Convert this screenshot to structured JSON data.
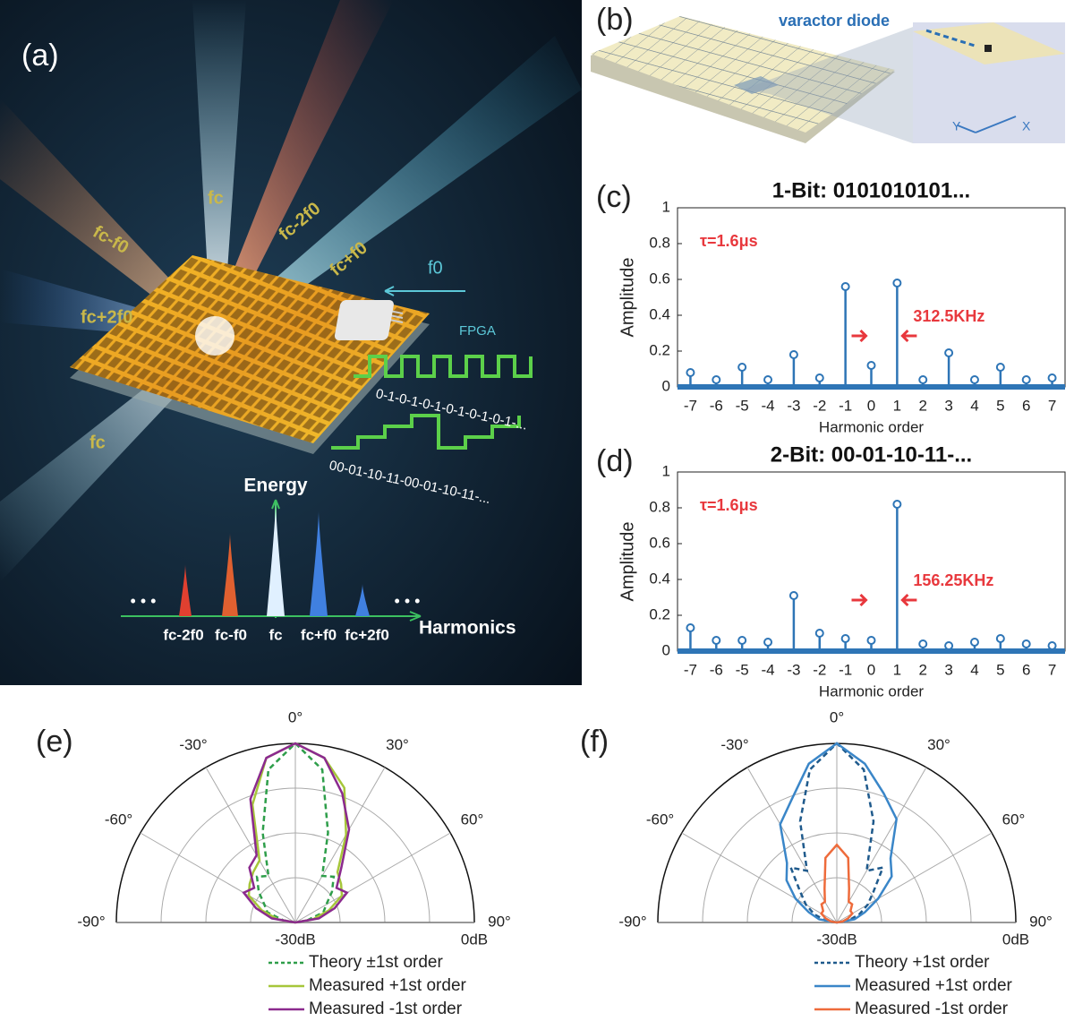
{
  "illustration_a": {
    "label": "(a)",
    "beam_labels": [
      "fc",
      "fc-2f0",
      "fc-f0",
      "fc+f0",
      "fc+2f0",
      "fc"
    ],
    "f0": "f0",
    "fpga": "FPGA",
    "code_1bit": "0-1-0-1-0-1-0-1-0-1-0-1-...",
    "code_2bit": "00-01-10-11-00-01-10-11-...",
    "energy": "Energy",
    "harmonics": "Harmonics",
    "spectrum_labels": [
      "fc-2f0",
      "fc-f0",
      "fc",
      "fc+f0",
      "fc+2f0"
    ],
    "dots": [
      "• • •",
      "• • •"
    ]
  },
  "illustration_b": {
    "label": "(b)",
    "callout": "varactor diode",
    "axes": [
      "Y",
      "X"
    ]
  },
  "chart_data": [
    {
      "type": "stem",
      "label": "(c)",
      "title": "1-Bit: 0101010101...",
      "x_label": "Harmonic order",
      "y_label": "Amplitude",
      "annotations": [
        "τ=1.6μs",
        "312.5KHz"
      ],
      "color": "#2e75b6",
      "annotation_color": "#e8383d",
      "x": [
        -7,
        -6,
        -5,
        -4,
        -3,
        -2,
        -1,
        0,
        1,
        2,
        3,
        4,
        5,
        6,
        7
      ],
      "values": [
        0.08,
        0.04,
        0.11,
        0.04,
        0.18,
        0.05,
        0.56,
        0.12,
        0.58,
        0.04,
        0.19,
        0.04,
        0.11,
        0.04,
        0.05
      ],
      "xlim": [
        -7.5,
        7.5
      ],
      "xticks": [
        -7,
        -6,
        -5,
        -4,
        -3,
        -2,
        -1,
        0,
        1,
        2,
        3,
        4,
        5,
        6,
        7
      ],
      "ylim": [
        0,
        1
      ],
      "yticks": [
        0,
        0.2,
        0.4,
        0.6,
        0.8,
        1
      ]
    },
    {
      "type": "stem",
      "label": "(d)",
      "title": "2-Bit: 00-01-10-11-...",
      "x_label": "Harmonic order",
      "y_label": "Amplitude",
      "annotations": [
        "τ=1.6μs",
        "156.25KHz"
      ],
      "color": "#2e75b6",
      "annotation_color": "#e8383d",
      "x": [
        -7,
        -6,
        -5,
        -4,
        -3,
        -2,
        -1,
        0,
        1,
        2,
        3,
        4,
        5,
        6,
        7
      ],
      "values": [
        0.13,
        0.06,
        0.06,
        0.05,
        0.31,
        0.1,
        0.07,
        0.06,
        0.82,
        0.04,
        0.03,
        0.05,
        0.07,
        0.04,
        0.03
      ],
      "xlim": [
        -7.5,
        7.5
      ],
      "xticks": [
        -7,
        -6,
        -5,
        -4,
        -3,
        -2,
        -1,
        0,
        1,
        2,
        3,
        4,
        5,
        6,
        7
      ],
      "ylim": [
        0,
        1
      ],
      "yticks": [
        0,
        0.2,
        0.4,
        0.6,
        0.8,
        1
      ]
    },
    {
      "type": "polar",
      "label": "(e)",
      "theta": [
        -90,
        -80,
        -70,
        -60,
        -50,
        -40,
        -30,
        -20,
        -10,
        0,
        10,
        20,
        30,
        40,
        50,
        60,
        70,
        80,
        90
      ],
      "rlim": [
        -30,
        0
      ],
      "rticks": [
        {
          "value": -30,
          "label": "-30dB"
        },
        {
          "value": 0,
          "label": "0dB"
        }
      ],
      "rgrid": [
        -22.5,
        -15,
        -7.5
      ],
      "thetaticks": [
        {
          "value": -90,
          "label": "-90°"
        },
        {
          "value": -60,
          "label": "-60°"
        },
        {
          "value": -30,
          "label": "-30°"
        },
        {
          "value": 0,
          "label": "0°"
        },
        {
          "value": 30,
          "label": "30°"
        },
        {
          "value": 60,
          "label": "60°"
        },
        {
          "value": 90,
          "label": "90°"
        }
      ],
      "series": [
        {
          "name": "Theory ±1st order",
          "color": "#2e9e4a",
          "line_style": "dashed",
          "values": [
            -30,
            -28,
            -25,
            -24,
            -22,
            -20,
            -21,
            -14,
            -4,
            0,
            -4,
            -14,
            -21,
            -20,
            -22,
            -24,
            -25,
            -28,
            -30
          ]
        },
        {
          "name": "Measured +1st order",
          "color": "#a6c63a",
          "line_style": "solid",
          "values": [
            -30,
            -27,
            -24,
            -21,
            -20,
            -19,
            -18,
            -9,
            -2,
            0,
            -2,
            -6,
            -13,
            -19,
            -20,
            -21,
            -24,
            -27,
            -30
          ]
        },
        {
          "name": "Measured -1st order",
          "color": "#8b2a8e",
          "line_style": "solid",
          "values": [
            -30,
            -26,
            -23,
            -20,
            -21,
            -18,
            -17,
            -8,
            -2,
            0,
            -2,
            -7,
            -12,
            -18,
            -21,
            -20,
            -23,
            -26,
            -30
          ]
        }
      ]
    },
    {
      "type": "polar",
      "label": "(f)",
      "theta": [
        -90,
        -80,
        -70,
        -60,
        -50,
        -40,
        -30,
        -20,
        -10,
        0,
        10,
        20,
        30,
        40,
        50,
        60,
        70,
        80,
        90
      ],
      "rlim": [
        -30,
        0
      ],
      "rticks": [
        {
          "value": -30,
          "label": "-30dB"
        },
        {
          "value": 0,
          "label": "0dB"
        }
      ],
      "rgrid": [
        -22.5,
        -15,
        -7.5
      ],
      "thetaticks": [
        {
          "value": -90,
          "label": "-90°"
        },
        {
          "value": -60,
          "label": "-60°"
        },
        {
          "value": -30,
          "label": "-30°"
        },
        {
          "value": 0,
          "label": "0°"
        },
        {
          "value": 30,
          "label": "30°"
        },
        {
          "value": 60,
          "label": "60°"
        },
        {
          "value": 90,
          "label": "90°"
        }
      ],
      "series": [
        {
          "name": "Theory +1st order",
          "color": "#1f5a8c",
          "line_style": "dashed",
          "values": [
            -30,
            -28,
            -26,
            -24,
            -22,
            -18,
            -20,
            -12,
            -4,
            0,
            -4,
            -12,
            -20,
            -18,
            -22,
            -24,
            -26,
            -28,
            -30
          ]
        },
        {
          "name": "Measured +1st order",
          "color": "#3a86c8",
          "line_style": "solid",
          "values": [
            -30,
            -27,
            -25,
            -22,
            -19,
            -17,
            -11,
            -8,
            -3,
            0,
            -3,
            -7,
            -10,
            -16,
            -18,
            -22,
            -25,
            -27,
            -30
          ]
        },
        {
          "name": "Measured -1st order",
          "color": "#ee6b3b",
          "line_style": "solid",
          "values": [
            -30,
            -29,
            -28,
            -27,
            -27,
            -26,
            -26,
            -24,
            -19,
            -17,
            -19,
            -24,
            -26,
            -26,
            -27,
            -27,
            -28,
            -29,
            -30
          ]
        }
      ]
    }
  ]
}
